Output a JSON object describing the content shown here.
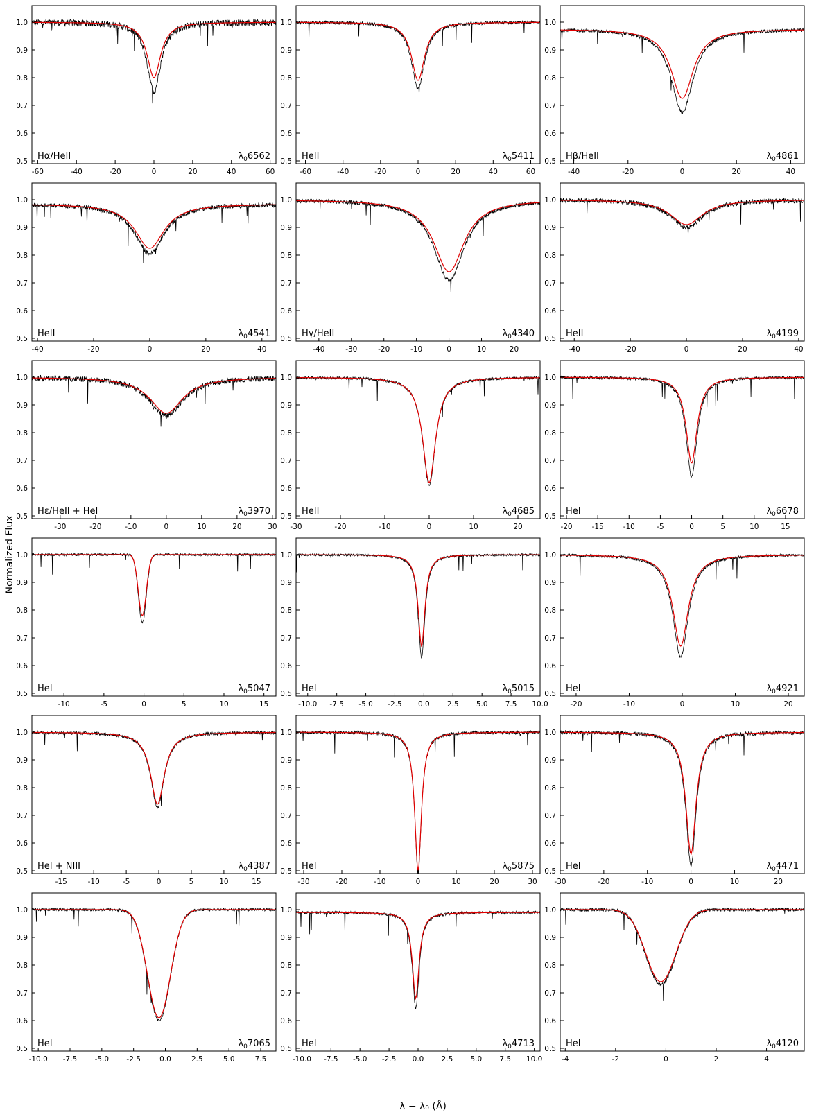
{
  "figure": {
    "ylabel": "Normalized Flux",
    "xlabel": "λ − λ₀ (Å)",
    "colors": {
      "observed": "#000000",
      "model": "#e00000",
      "axis": "#000000"
    }
  },
  "chart_data": [
    {
      "type": "line",
      "line_label": "Hα/HeII",
      "lambda0": "6562",
      "xlim": [
        -63,
        63
      ],
      "xticks": [
        -60,
        -40,
        -20,
        0,
        20,
        40,
        60
      ],
      "ylim": [
        0.49,
        1.06
      ],
      "yticks": [
        0.5,
        0.6,
        0.7,
        0.8,
        0.9,
        1.0
      ],
      "cont": 1.0,
      "depth_obs": 0.25,
      "depth_model": 0.2,
      "center": 0,
      "width": 6,
      "lorentz": true,
      "noise": 0.012,
      "series": [
        {
          "values": "observed"
        },
        {
          "values": "model"
        }
      ]
    },
    {
      "type": "line",
      "line_label": "HeII",
      "lambda0": "5411",
      "xlim": [
        -65,
        65
      ],
      "xticks": [
        -60,
        -40,
        -20,
        0,
        20,
        40,
        60
      ],
      "ylim": [
        0.49,
        1.06
      ],
      "yticks": [
        0.5,
        0.6,
        0.7,
        0.8,
        0.9,
        1.0
      ],
      "cont": 1.0,
      "depth_obs": 0.24,
      "depth_model": 0.21,
      "center": 0,
      "width": 6,
      "lorentz": true,
      "noise": 0.006
    },
    {
      "type": "line",
      "line_label": "Hβ/HeII",
      "lambda0": "4861",
      "xlim": [
        -45,
        45
      ],
      "xticks": [
        -40,
        -20,
        0,
        20,
        40
      ],
      "ylim": [
        0.49,
        1.06
      ],
      "yticks": [
        0.5,
        0.6,
        0.7,
        0.8,
        0.9,
        1.0
      ],
      "cont": 0.975,
      "depth_obs": 0.3,
      "depth_model": 0.25,
      "center": 0,
      "width": 7,
      "lorentz": true,
      "noise": 0.006
    },
    {
      "type": "line",
      "line_label": "HeII",
      "lambda0": "4541",
      "xlim": [
        -42,
        45
      ],
      "xticks": [
        -40,
        -20,
        0,
        20,
        40
      ],
      "ylim": [
        0.49,
        1.06
      ],
      "yticks": [
        0.5,
        0.6,
        0.7,
        0.8,
        0.9,
        1.0
      ],
      "cont": 0.985,
      "depth_obs": 0.18,
      "depth_model": 0.16,
      "center": 0,
      "width": 9,
      "lorentz": true,
      "noise": 0.008
    },
    {
      "type": "line",
      "line_label": "Hγ/HeII",
      "lambda0": "4340",
      "xlim": [
        -47,
        28
      ],
      "xticks": [
        -40,
        -30,
        -20,
        -10,
        0,
        10,
        20
      ],
      "ylim": [
        0.49,
        1.06
      ],
      "yticks": [
        0.5,
        0.6,
        0.7,
        0.8,
        0.9,
        1.0
      ],
      "cont": 1.0,
      "depth_obs": 0.29,
      "depth_model": 0.26,
      "center": 0,
      "width": 8,
      "lorentz": true,
      "noise": 0.007
    },
    {
      "type": "line",
      "line_label": "HeII",
      "lambda0": "4199",
      "xlim": [
        -45,
        42
      ],
      "xticks": [
        -40,
        -20,
        0,
        20,
        40
      ],
      "ylim": [
        0.49,
        1.06
      ],
      "yticks": [
        0.5,
        0.6,
        0.7,
        0.8,
        0.9,
        1.0
      ],
      "cont": 1.0,
      "depth_obs": 0.1,
      "depth_model": 0.09,
      "center": 0,
      "width": 10,
      "lorentz": true,
      "noise": 0.009
    },
    {
      "type": "line",
      "line_label": "Hε/HeII + HeI",
      "lambda0": "3970",
      "xlim": [
        -38,
        31
      ],
      "xticks": [
        -40,
        -30,
        -20,
        -10,
        0,
        10,
        20,
        30
      ],
      "ylim": [
        0.49,
        1.06
      ],
      "yticks": [
        0.5,
        0.6,
        0.7,
        0.8,
        0.9,
        1.0
      ],
      "cont": 1.0,
      "depth_obs": 0.14,
      "depth_model": 0.13,
      "center": 0,
      "width": 8,
      "lorentz": true,
      "noise": 0.01
    },
    {
      "type": "line",
      "line_label": "HeII",
      "lambda0": "4685",
      "xlim": [
        -30,
        25
      ],
      "xticks": [
        -30,
        -20,
        -10,
        0,
        10,
        20
      ],
      "ylim": [
        0.49,
        1.06
      ],
      "yticks": [
        0.5,
        0.6,
        0.7,
        0.8,
        0.9,
        1.0
      ],
      "cont": 1.0,
      "depth_obs": 0.39,
      "depth_model": 0.38,
      "center": 0,
      "width": 2.5,
      "lorentz": true,
      "noise": 0.005
    },
    {
      "type": "line",
      "line_label": "HeI",
      "lambda0": "6678",
      "xlim": [
        -21,
        18
      ],
      "xticks": [
        -20,
        -15,
        -10,
        -5,
        0,
        5,
        10,
        15
      ],
      "ylim": [
        0.49,
        1.06
      ],
      "yticks": [
        0.5,
        0.6,
        0.7,
        0.8,
        0.9,
        1.0
      ],
      "cont": 1.0,
      "depth_obs": 0.36,
      "depth_model": 0.31,
      "center": 0,
      "width": 1.5,
      "lorentz": true,
      "noise": 0.005
    },
    {
      "type": "line",
      "line_label": "HeI",
      "lambda0": "5047",
      "xlim": [
        -14,
        16.5
      ],
      "xticks": [
        -15,
        -10,
        -5,
        0,
        5,
        10,
        15
      ],
      "ylim": [
        0.49,
        1.06
      ],
      "yticks": [
        0.5,
        0.6,
        0.7,
        0.8,
        0.9,
        1.0
      ],
      "cont": 1.0,
      "depth_obs": 0.245,
      "depth_model": 0.22,
      "center": -0.2,
      "width": 0.5,
      "lorentz": false,
      "noise": 0.004
    },
    {
      "type": "line",
      "line_label": "HeI",
      "lambda0": "5015",
      "xlim": [
        -11,
        10
      ],
      "xticks": [
        -10.0,
        -7.5,
        -5.0,
        -2.5,
        0.0,
        2.5,
        5.0,
        7.5,
        10.0
      ],
      "ylim": [
        0.49,
        1.06
      ],
      "yticks": [
        0.5,
        0.6,
        0.7,
        0.8,
        0.9,
        1.0
      ],
      "cont": 1.0,
      "depth_obs": 0.37,
      "depth_model": 0.33,
      "center": -0.2,
      "width": 0.5,
      "lorentz": true,
      "noise": 0.004
    },
    {
      "type": "line",
      "line_label": "HeI",
      "lambda0": "4921",
      "xlim": [
        -23,
        23
      ],
      "xticks": [
        -20,
        -10,
        0,
        10,
        20
      ],
      "ylim": [
        0.49,
        1.06
      ],
      "yticks": [
        0.5,
        0.6,
        0.7,
        0.8,
        0.9,
        1.0
      ],
      "cont": 1.0,
      "depth_obs": 0.37,
      "depth_model": 0.33,
      "center": -0.3,
      "width": 2.5,
      "lorentz": true,
      "noise": 0.005
    },
    {
      "type": "line",
      "line_label": "HeI + NIII",
      "lambda0": "4387",
      "xlim": [
        -19.5,
        18
      ],
      "xticks": [
        -20,
        -15,
        -10,
        -5,
        0,
        5,
        10,
        15
      ],
      "ylim": [
        0.49,
        1.06
      ],
      "yticks": [
        0.5,
        0.6,
        0.7,
        0.8,
        0.9,
        1.0
      ],
      "cont": 1.0,
      "depth_obs": 0.27,
      "depth_model": 0.26,
      "center": -0.2,
      "width": 1.8,
      "lorentz": true,
      "noise": 0.006
    },
    {
      "type": "line",
      "line_label": "HeI",
      "lambda0": "5875",
      "xlim": [
        -32,
        32
      ],
      "xticks": [
        -30,
        -20,
        -10,
        0,
        10,
        20,
        30
      ],
      "ylim": [
        0.49,
        1.06
      ],
      "yticks": [
        0.5,
        0.6,
        0.7,
        0.8,
        0.9,
        1.0
      ],
      "cont": 1.0,
      "depth_obs": 0.51,
      "depth_model": 0.5,
      "center": 0,
      "width": 1.5,
      "lorentz": true,
      "noise": 0.006
    },
    {
      "type": "line",
      "line_label": "HeI",
      "lambda0": "4471",
      "xlim": [
        -30,
        26
      ],
      "xticks": [
        -30,
        -20,
        -10,
        0,
        10,
        20
      ],
      "ylim": [
        0.49,
        1.06
      ],
      "yticks": [
        0.5,
        0.6,
        0.7,
        0.8,
        0.9,
        1.0
      ],
      "cont": 1.0,
      "depth_obs": 0.48,
      "depth_model": 0.44,
      "center": 0,
      "width": 2.0,
      "lorentz": true,
      "noise": 0.007
    },
    {
      "type": "line",
      "line_label": "HeI",
      "lambda0": "7065",
      "xlim": [
        -10.5,
        8.7
      ],
      "xticks": [
        -10.0,
        -7.5,
        -5.0,
        -2.5,
        0.0,
        2.5,
        5.0,
        7.5
      ],
      "ylim": [
        0.49,
        1.06
      ],
      "yticks": [
        0.5,
        0.6,
        0.7,
        0.8,
        0.9,
        1.0
      ],
      "cont": 1.0,
      "depth_obs": 0.4,
      "depth_model": 0.39,
      "center": -0.5,
      "width": 0.9,
      "lorentz": false,
      "noise": 0.005
    },
    {
      "type": "line",
      "line_label": "HeI",
      "lambda0": "4713",
      "xlim": [
        -10.5,
        10.5
      ],
      "xticks": [
        -10.0,
        -7.5,
        -5.0,
        -2.5,
        0.0,
        2.5,
        5.0,
        7.5,
        10.0
      ],
      "ylim": [
        0.49,
        1.06
      ],
      "yticks": [
        0.5,
        0.6,
        0.7,
        0.8,
        0.9,
        1.0
      ],
      "cont": 0.99,
      "depth_obs": 0.345,
      "depth_model": 0.31,
      "center": -0.2,
      "width": 0.5,
      "lorentz": true,
      "noise": 0.005
    },
    {
      "type": "line",
      "line_label": "HeI",
      "lambda0": "4120",
      "xlim": [
        -4.2,
        5.5
      ],
      "xticks": [
        -4,
        -2,
        0,
        2,
        4
      ],
      "ylim": [
        0.49,
        1.06
      ],
      "yticks": [
        0.5,
        0.6,
        0.7,
        0.8,
        0.9,
        1.0
      ],
      "cont": 1.0,
      "depth_obs": 0.27,
      "depth_model": 0.26,
      "center": -0.2,
      "width": 0.6,
      "lorentz": false,
      "noise": 0.006
    }
  ]
}
